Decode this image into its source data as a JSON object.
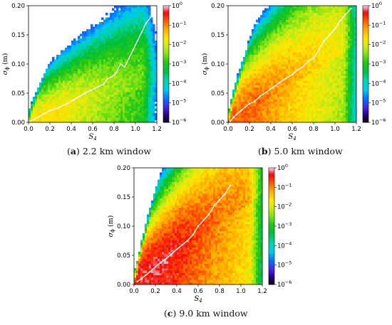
{
  "chart_data": [
    {
      "type": "heatmap",
      "panel_letter": "a",
      "caption": "2.2 km window",
      "xlabel": "S4",
      "ylabel": "σϕ (m)",
      "xlim": [
        0,
        1.2
      ],
      "ylim": [
        0,
        0.2
      ],
      "x_ticks": [
        "0.0",
        "0.2",
        "0.4",
        "0.6",
        "0.8",
        "1.0",
        "1.2"
      ],
      "y_ticks": [
        "0.00",
        "0.05",
        "0.10",
        "0.15",
        "0.20"
      ],
      "colorbar": {
        "scale": "log",
        "ticks": [
          "10^0",
          "10^-1",
          "10^-2",
          "10^-3",
          "10^-4",
          "10^-5",
          "10^-6"
        ],
        "range": [
          1e-06,
          1
        ]
      },
      "median_line": {
        "x": [
          0.02,
          0.06,
          0.1,
          0.15,
          0.2,
          0.28,
          0.36,
          0.42,
          0.48,
          0.53,
          0.58,
          0.62,
          0.66,
          0.7,
          0.74,
          0.78,
          0.82,
          0.86,
          0.9,
          0.94,
          0.98,
          1.02,
          1.06,
          1.1,
          1.15,
          1.18
        ],
        "y": [
          0.002,
          0.006,
          0.01,
          0.015,
          0.02,
          0.025,
          0.032,
          0.038,
          0.045,
          0.05,
          0.055,
          0.058,
          0.062,
          0.065,
          0.075,
          0.078,
          0.085,
          0.1,
          0.095,
          0.11,
          0.125,
          0.14,
          0.155,
          0.17,
          0.182,
          0.2
        ]
      }
    },
    {
      "type": "heatmap",
      "panel_letter": "b",
      "caption": "5.0 km window",
      "xlabel": "S4",
      "ylabel": "σϕ (m)",
      "xlim": [
        0,
        1.2
      ],
      "ylim": [
        0,
        0.2
      ],
      "x_ticks": [
        "0.0",
        "0.2",
        "0.4",
        "0.6",
        "0.8",
        "1.0",
        "1.2"
      ],
      "y_ticks": [
        "0.00",
        "0.05",
        "0.10",
        "0.15",
        "0.20"
      ],
      "colorbar": {
        "scale": "log",
        "ticks": [
          "10^0",
          "10^-1",
          "10^-2",
          "10^-3",
          "10^-4",
          "10^-5",
          "10^-6"
        ],
        "range": [
          1e-06,
          1
        ]
      },
      "median_line": {
        "x": [
          0.02,
          0.05,
          0.08,
          0.12,
          0.16,
          0.2,
          0.25,
          0.3,
          0.36,
          0.42,
          0.48,
          0.54,
          0.6,
          0.65,
          0.7,
          0.75,
          0.8,
          0.85,
          0.9,
          0.95,
          1.0,
          1.05,
          1.1,
          1.15
        ],
        "y": [
          0.002,
          0.008,
          0.014,
          0.02,
          0.026,
          0.032,
          0.036,
          0.045,
          0.052,
          0.06,
          0.068,
          0.075,
          0.082,
          0.09,
          0.095,
          0.105,
          0.11,
          0.125,
          0.14,
          0.15,
          0.16,
          0.175,
          0.185,
          0.195
        ]
      }
    },
    {
      "type": "heatmap",
      "panel_letter": "c",
      "caption": "9.0 km window",
      "xlabel": "S4",
      "ylabel": "σϕ (m)",
      "xlim": [
        0,
        1.2
      ],
      "ylim": [
        0,
        0.2
      ],
      "x_ticks": [
        "0.0",
        "0.2",
        "0.4",
        "0.6",
        "0.8",
        "1.0",
        "1.2"
      ],
      "y_ticks": [
        "0.00",
        "0.05",
        "0.10",
        "0.15",
        "0.20"
      ],
      "colorbar": {
        "scale": "log",
        "ticks": [
          "10^0",
          "10^-1",
          "10^-2",
          "10^-3",
          "10^-4",
          "10^-5",
          "10^-6"
        ],
        "range": [
          1e-06,
          1
        ]
      },
      "median_line": {
        "x": [
          0.03,
          0.07,
          0.11,
          0.15,
          0.2,
          0.25,
          0.3,
          0.35,
          0.4,
          0.45,
          0.5,
          0.55,
          0.6,
          0.65,
          0.7,
          0.75,
          0.8,
          0.85,
          0.9
        ],
        "y": [
          0.005,
          0.01,
          0.016,
          0.022,
          0.03,
          0.038,
          0.044,
          0.052,
          0.06,
          0.068,
          0.075,
          0.085,
          0.1,
          0.11,
          0.12,
          0.135,
          0.145,
          0.155,
          0.17
        ]
      }
    }
  ]
}
